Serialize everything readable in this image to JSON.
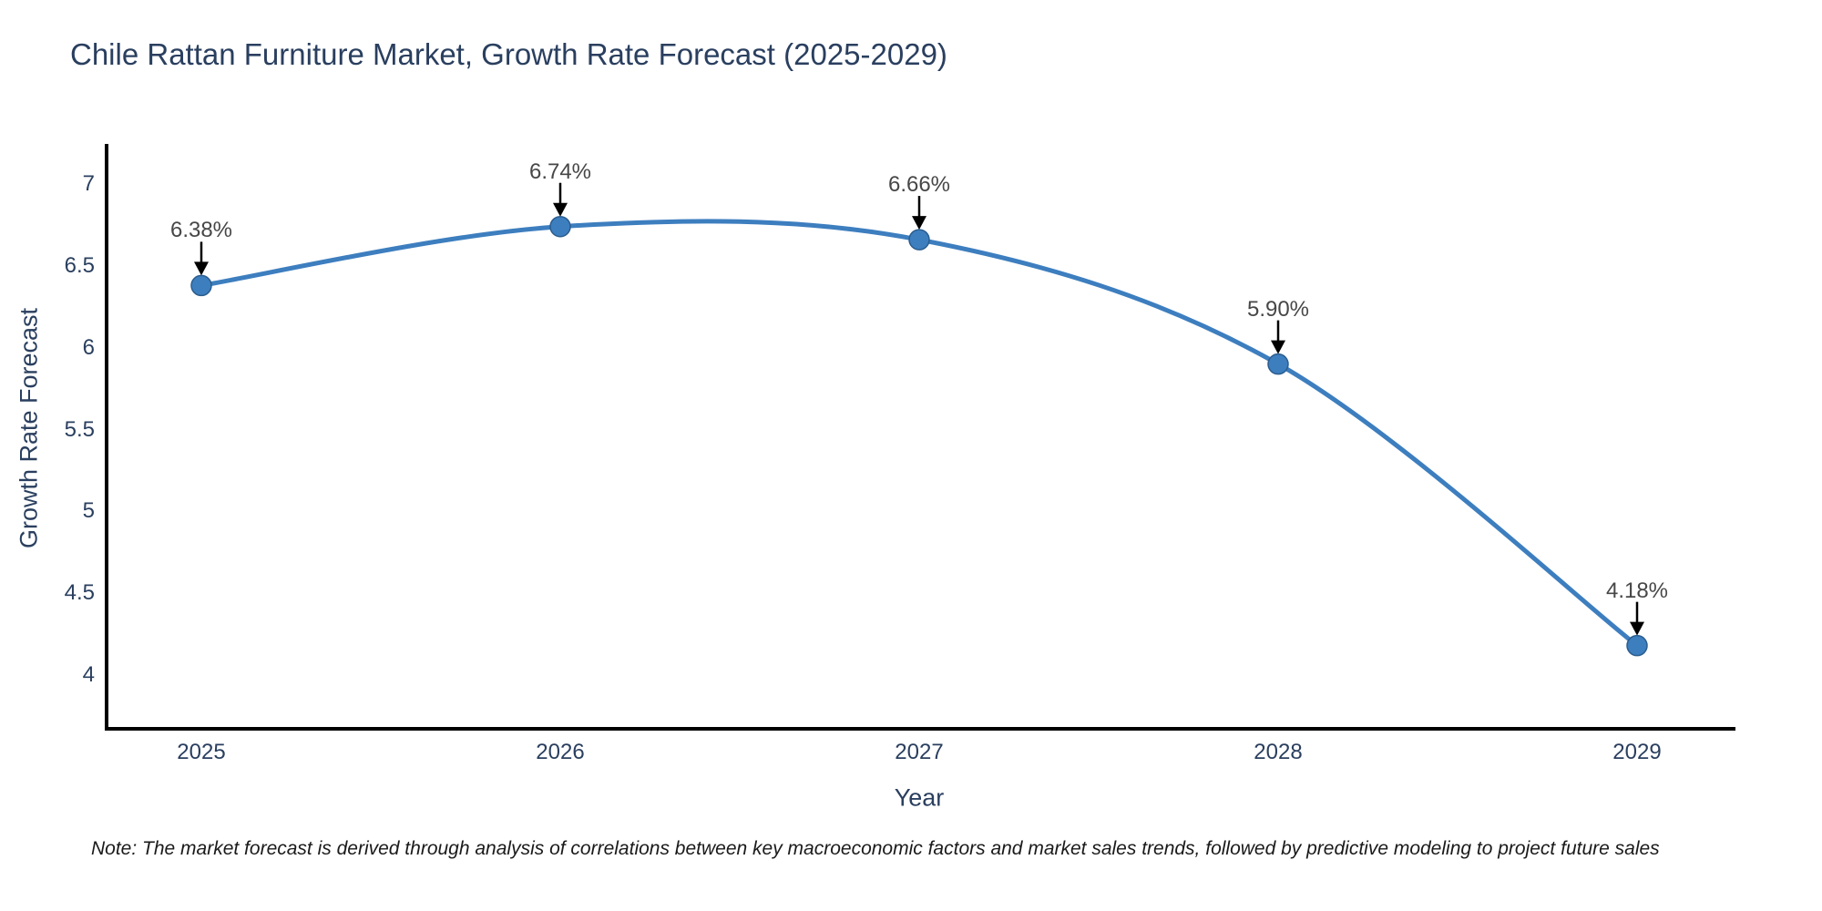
{
  "title": "Chile Rattan Furniture Market, Growth Rate Forecast (2025-2029)",
  "note": "Note: The market forecast is derived through analysis of correlations between key macroeconomic factors and market sales trends, followed by predictive modeling to project future sales",
  "chart_data": {
    "type": "line",
    "title": "Chile Rattan Furniture Market, Growth Rate Forecast (2025-2029)",
    "xlabel": "Year",
    "ylabel": "Growth Rate Forecast",
    "x": [
      2025,
      2026,
      2027,
      2028,
      2029
    ],
    "y": [
      6.38,
      6.74,
      6.66,
      5.9,
      4.18
    ],
    "point_labels": [
      "6.38%",
      "6.74%",
      "6.66%",
      "5.90%",
      "4.18%"
    ],
    "x_tick_labels": [
      "2025",
      "2026",
      "2027",
      "2028",
      "2029"
    ],
    "y_tick_labels": [
      "7",
      "6.5",
      "6",
      "5.5",
      "5",
      "4.5",
      "4"
    ],
    "y_tick_values": [
      7,
      6.5,
      6,
      5.5,
      5,
      4.5,
      4
    ],
    "ylim": [
      3.67,
      7.23
    ],
    "grid": false,
    "legend": "none",
    "line_shape": "spline",
    "annotation_arrows": "black vertical arrow pointing down at each marker",
    "colors": {
      "line": "#3d7ebf",
      "marker": "#3d7ebf",
      "marker_edge": "#2b5d8e",
      "arrow": "#000000",
      "axis_line": "#000000",
      "title_text": "#2a3f5f",
      "tick_text": "#2a3f5f",
      "annotation_text": "#474747",
      "note_text": "#1a1a1a",
      "background": "#ffffff"
    }
  }
}
